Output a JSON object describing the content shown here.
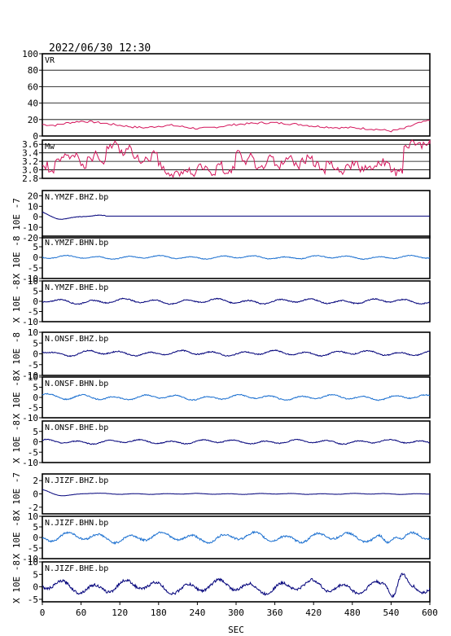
{
  "header": {
    "datetime": "2022/06/30 12:30"
  },
  "colors": {
    "vr": "#d4145a",
    "mw": "#d4145a",
    "trace_dark": "#00007a",
    "trace_light": "#1a6fd0",
    "frame": "#000000"
  },
  "chart_data": [
    {
      "type": "line",
      "panel_label": "VR",
      "ylim": [
        0,
        100
      ],
      "yticks": [
        "100",
        "80",
        "60",
        "40",
        "20",
        "0"
      ],
      "grid": true,
      "series": [
        {
          "x": [
            0,
            20,
            40,
            60,
            80,
            100,
            120,
            140,
            160,
            180,
            200,
            220,
            240,
            260,
            280,
            300,
            320,
            340,
            360,
            380,
            400,
            420,
            440,
            460,
            480,
            500,
            520,
            540,
            560,
            580,
            600
          ],
          "values": [
            14,
            13,
            16,
            18,
            17,
            15,
            13,
            11,
            10,
            12,
            13,
            11,
            9,
            10,
            12,
            14,
            15,
            16,
            16,
            15,
            14,
            12,
            11,
            10,
            10,
            9,
            8,
            6,
            9,
            15,
            19
          ]
        }
      ]
    },
    {
      "type": "line",
      "panel_label": "Mw",
      "ylim": [
        2.8,
        3.7
      ],
      "yticks": [
        "3.6",
        "3.4",
        "3.2",
        "3.0",
        "2.8"
      ],
      "grid": true,
      "series": [
        {
          "x": [
            0,
            10,
            20,
            30,
            40,
            50,
            60,
            70,
            80,
            90,
            100,
            110,
            120,
            130,
            140,
            150,
            160,
            170,
            180,
            190,
            200,
            210,
            220,
            230,
            240,
            250,
            260,
            270,
            280,
            290,
            300,
            310,
            320,
            330,
            340,
            350,
            360,
            370,
            380,
            390,
            400,
            410,
            420,
            430,
            440,
            450,
            460,
            470,
            480,
            490,
            500,
            510,
            520,
            530,
            540,
            550,
            560,
            570,
            580,
            590,
            600
          ],
          "values": [
            3.1,
            2.95,
            3.2,
            3.3,
            3.35,
            3.3,
            3.1,
            3.3,
            3.35,
            3.2,
            3.55,
            3.6,
            3.4,
            3.5,
            3.35,
            3.2,
            3.3,
            3.4,
            3.1,
            2.95,
            2.9,
            2.95,
            3.0,
            2.9,
            3.05,
            3.0,
            2.95,
            3.1,
            2.95,
            3.0,
            3.4,
            3.2,
            3.3,
            3.05,
            3.1,
            3.3,
            3.1,
            3.2,
            3.25,
            3.1,
            3.2,
            3.35,
            3.1,
            3.0,
            3.2,
            3.05,
            2.95,
            3.1,
            3.2,
            3.05,
            3.1,
            3.0,
            3.2,
            3.1,
            2.95,
            3.0,
            3.55,
            3.65,
            3.6,
            3.65,
            3.7
          ]
        }
      ]
    },
    {
      "type": "line",
      "panel_label": "N.YMZF.BHZ.bp",
      "exponent_label": "10E -7",
      "ylim": [
        -20,
        25
      ],
      "yticks": [
        "20",
        "10",
        "0",
        "-10",
        "-20"
      ],
      "color_key": "trace_dark",
      "amp": 0.8,
      "offset": 0,
      "decay_start": 4,
      "decay_len": 50,
      "stop_at": 100,
      "after_level": 0.6
    },
    {
      "type": "line",
      "panel_label": "N.YMZF.BHN.bp",
      "exponent_label": "X 10E -8",
      "ylim": [
        -10,
        10
      ],
      "yticks": [
        "5",
        "0",
        "-5",
        "-10"
      ],
      "color_key": "trace_light",
      "amp": 0.55
    },
    {
      "type": "line",
      "panel_label": "N.YMZF.BHE.bp",
      "exponent_label": "X 10E -8",
      "ylim": [
        -10,
        10
      ],
      "yticks": [
        "10",
        "5",
        "0",
        "-5",
        "-10"
      ],
      "color_key": "trace_dark",
      "amp": 0.85
    },
    {
      "type": "line",
      "panel_label": "N.ONSF.BHZ.bp",
      "exponent_label": "X 10E -8",
      "ylim": [
        -10,
        10
      ],
      "yticks": [
        "10",
        "5",
        "0",
        "-5",
        "-10"
      ],
      "color_key": "trace_dark",
      "amp": 0.8,
      "offset": 1,
      "decay_start": 1.5,
      "decay_len": 30
    },
    {
      "type": "line",
      "panel_label": "N.ONSF.BHN.bp",
      "exponent_label": "X 10E -8",
      "ylim": [
        -10,
        10
      ],
      "yticks": [
        "10",
        "5",
        "0",
        "-5",
        "-10"
      ],
      "color_key": "trace_light",
      "amp": 0.85,
      "decay_start": 2,
      "decay_len": 30
    },
    {
      "type": "line",
      "panel_label": "N.ONSF.BHE.bp",
      "exponent_label": "X 10E -8",
      "ylim": [
        -10,
        10
      ],
      "yticks": [
        "5",
        "0",
        "-5",
        "-10"
      ],
      "color_key": "trace_dark",
      "amp": 0.7
    },
    {
      "type": "line",
      "panel_label": "N.JIZF.BHZ.bp",
      "exponent_label": "X 10E -7",
      "ylim": [
        -3,
        3
      ],
      "yticks": [
        "2",
        "0",
        "-2"
      ],
      "color_key": "trace_dark",
      "amp": 0.05,
      "decay_start": 0.6,
      "decay_len": 40,
      "stop_at": 600
    },
    {
      "type": "line",
      "panel_label": "N.JIZF.BHN.bp",
      "exponent_label": "X 10E -8",
      "ylim": [
        -10,
        10
      ],
      "yticks": [
        "10",
        "5",
        "0",
        "-5",
        "-10"
      ],
      "color_key": "trace_light",
      "amp": 1.6,
      "burst_at": 540,
      "burst_amp": 2
    },
    {
      "type": "line",
      "panel_label": "N.JIZF.BHE.bp",
      "exponent_label": "X 10E -8",
      "ylim": [
        -6,
        10
      ],
      "yticks": [
        "10",
        "5",
        "0",
        "-5"
      ],
      "color_key": "trace_dark",
      "amp": 1.8,
      "burst_at": 550,
      "burst_amp": 3.5
    }
  ],
  "x_axis": {
    "label": "SEC",
    "ticks": [
      "0",
      "60",
      "120",
      "180",
      "240",
      "300",
      "360",
      "420",
      "480",
      "540",
      "600"
    ],
    "xlim": [
      0,
      600
    ]
  }
}
